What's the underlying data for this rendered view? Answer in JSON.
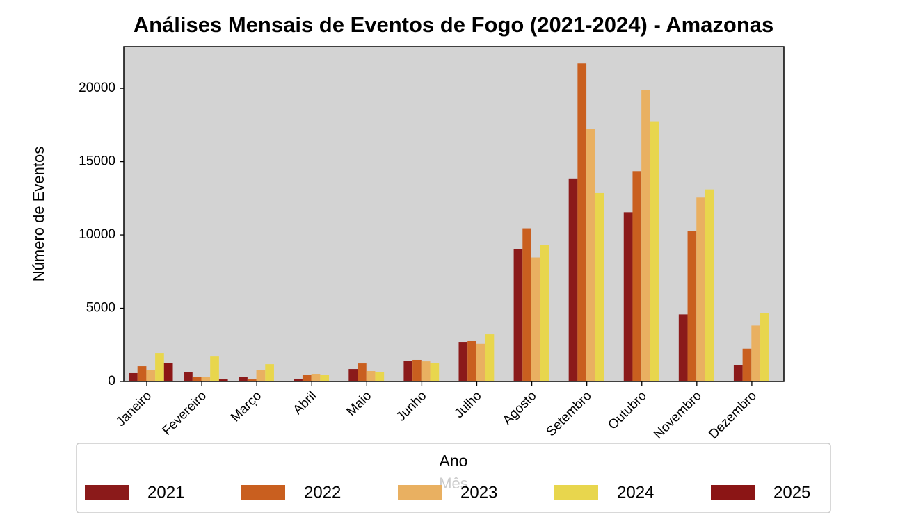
{
  "chart_data": {
    "type": "bar",
    "title": "Análises Mensais de Eventos de Fogo (2021-2024) - Amazonas",
    "x_label": "Mês",
    "y_label": "Número de Eventos",
    "legend_title": "Ano",
    "categories": [
      "Janeiro",
      "Fevereiro",
      "Março",
      "Abril",
      "Maio",
      "Junho",
      "Julho",
      "Agosto",
      "Setembro",
      "Outubro",
      "Novembro",
      "Dezembro"
    ],
    "series": [
      {
        "name": "2021",
        "color": "#8b1a1a",
        "values": [
          570,
          660,
          330,
          190,
          850,
          1390,
          2700,
          9020,
          13850,
          11550,
          4580,
          1130
        ]
      },
      {
        "name": "2022",
        "color": "#c95f1f",
        "values": [
          1040,
          330,
          140,
          430,
          1230,
          1470,
          2750,
          10450,
          21700,
          14350,
          10250,
          2240
        ]
      },
      {
        "name": "2023",
        "color": "#e9b061",
        "values": [
          800,
          330,
          760,
          520,
          710,
          1370,
          2570,
          8460,
          17250,
          19900,
          12550,
          3820
        ]
      },
      {
        "name": "2024",
        "color": "#e8d64d",
        "values": [
          1940,
          1700,
          1180,
          470,
          620,
          1280,
          3220,
          9330,
          12850,
          17750,
          13100,
          4650
        ]
      },
      {
        "name": "2025",
        "color": "#8b1515",
        "values": [
          1280,
          140,
          null,
          null,
          null,
          null,
          null,
          null,
          null,
          null,
          null,
          null
        ]
      }
    ],
    "ylim": [
      0,
      22850
    ],
    "yticks": [
      0,
      5000,
      10000,
      15000,
      20000
    ],
    "background": "#d3d3d3",
    "legend": "lower center"
  }
}
